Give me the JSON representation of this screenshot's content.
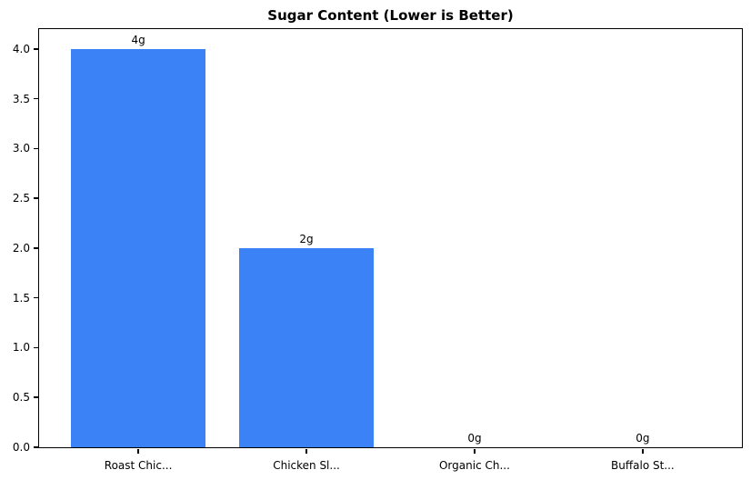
{
  "chart_data": {
    "type": "bar",
    "title": "Sugar Content (Lower is Better)",
    "categories": [
      "Roast Chic...",
      "Chicken Sl...",
      "Organic Ch...",
      "Buffalo St..."
    ],
    "values": [
      4,
      2,
      0,
      0
    ],
    "bar_labels": [
      "4g",
      "2g",
      "0g",
      "0g"
    ],
    "yticks": [
      0.0,
      0.5,
      1.0,
      1.5,
      2.0,
      2.5,
      3.0,
      3.5,
      4.0
    ],
    "ytick_labels": [
      "0.0",
      "0.5",
      "1.0",
      "1.5",
      "2.0",
      "2.5",
      "3.0",
      "3.5",
      "4.0"
    ],
    "ylim": [
      0,
      4.2
    ],
    "xlabel": "",
    "ylabel": "",
    "grid": false,
    "legend": "none",
    "colors": {
      "bar": "#3b82f6",
      "spine": "#000000",
      "text": "#000000",
      "background": "#ffffff"
    }
  }
}
